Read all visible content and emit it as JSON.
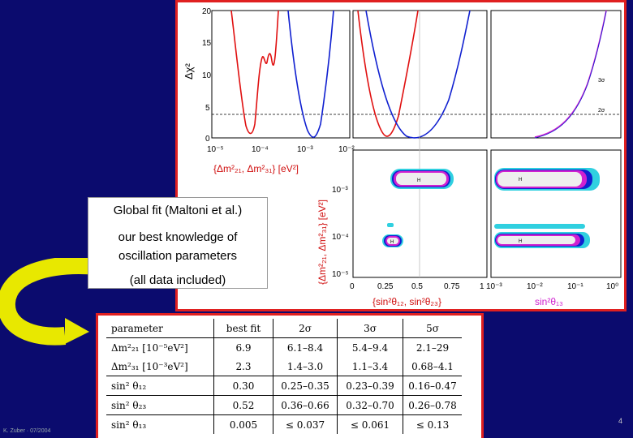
{
  "callout": {
    "line1": "Global fit (Maltoni et al.)",
    "line2": "our best knowledge of",
    "line3": "oscillation parameters",
    "line4": "(all data included)"
  },
  "plot": {
    "ylabel_top": "Δχ²",
    "y_ticks_top": [
      "20",
      "15",
      "10",
      "5",
      "0"
    ],
    "sigma_labels": [
      "3σ",
      "2σ"
    ],
    "x_ticks_panel1": [
      "10⁻⁵",
      "10⁻⁴",
      "10⁻³",
      "10⁻²"
    ],
    "xlabel_panel1": "{Δm²₂₁, Δm²₃₁} [eV²]",
    "ylabel_bottom": "{Δm²₂₁, Δm²₃₁} [eV²]",
    "y_ticks_bottom": [
      "10⁻³",
      "10⁻⁴",
      "10⁻⁵"
    ],
    "x_ticks_panel2": [
      "0",
      "0.25",
      "0.5",
      "0.75",
      "1"
    ],
    "xlabel_panel2": "{sin²θ₁₂, sin²θ₂₃}",
    "x_ticks_panel3": [
      "10⁻³",
      "10⁻²",
      "10⁻¹",
      "10⁰"
    ],
    "xlabel_panel3": "sin²θ₁₃",
    "colors": {
      "red": "#e01010",
      "blue": "#1020d0",
      "magenta": "#d020d0",
      "cyan": "#30d0e0"
    }
  },
  "table": {
    "headers": [
      "parameter",
      "best fit",
      "2σ",
      "3σ",
      "5σ"
    ],
    "rows": [
      [
        "Δm²₂₁ [10⁻⁵eV²]",
        "6.9",
        "6.1–8.4",
        "5.4–9.4",
        "2.1–29"
      ],
      [
        "Δm²₃₁ [10⁻³eV²]",
        "2.3",
        "1.4–3.0",
        "1.1–3.4",
        "0.68–4.1"
      ],
      [
        "sin² θ₁₂",
        "0.30",
        "0.25–0.35",
        "0.23–0.39",
        "0.16–0.47"
      ],
      [
        "sin² θ₂₃",
        "0.52",
        "0.36–0.66",
        "0.32–0.70",
        "0.26–0.78"
      ],
      [
        "sin² θ₁₃",
        "0.005",
        "≤ 0.037",
        "≤ 0.061",
        "≤ 0.13"
      ]
    ]
  },
  "footer": "K. Zuber · 07/2004",
  "page_number": "4"
}
